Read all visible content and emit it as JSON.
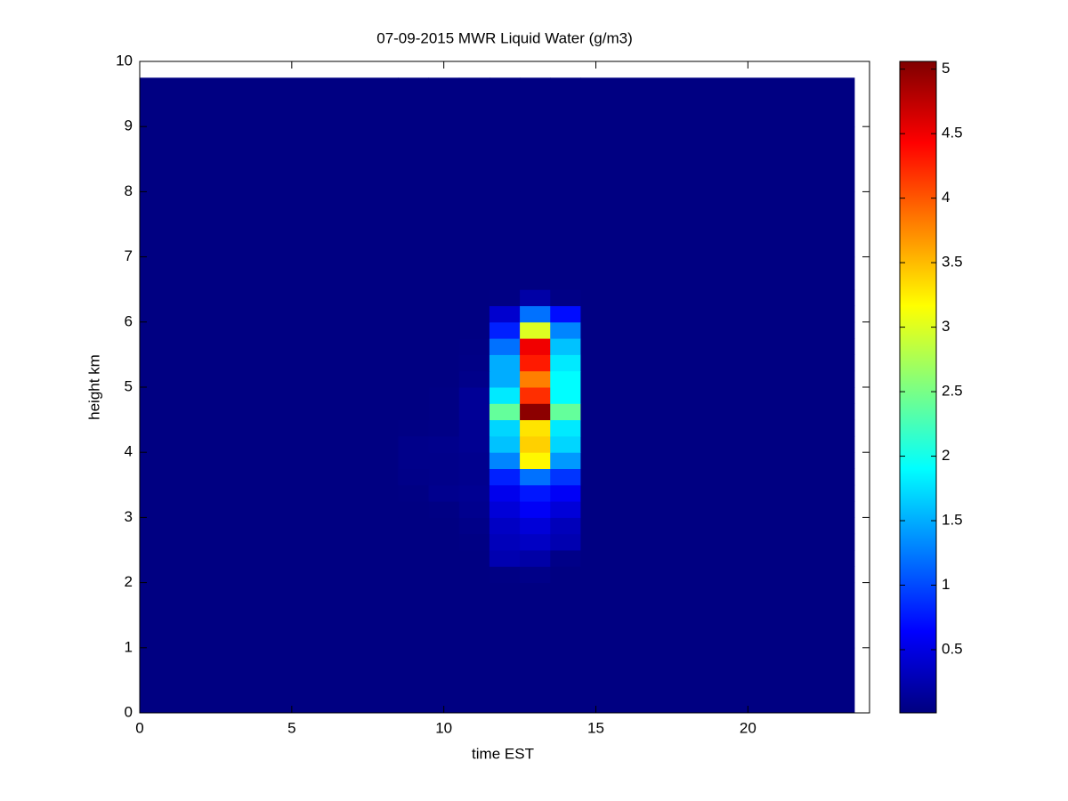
{
  "chart_data": {
    "type": "heatmap",
    "title": "07-09-2015 MWR Liquid Water (g/m3)",
    "x_label": "time EST",
    "y_label": "height km",
    "xlim": [
      0,
      24
    ],
    "ylim": [
      0,
      10
    ],
    "xticks": [
      0,
      5,
      10,
      15,
      20
    ],
    "yticks": [
      0,
      1,
      2,
      3,
      4,
      5,
      6,
      7,
      8,
      9,
      10
    ],
    "x_edges": [
      0,
      8.5,
      9.5,
      10.5,
      11.5,
      12.5,
      13.5,
      14.5,
      23.5
    ],
    "y_edges": [
      0,
      1,
      2,
      2.25,
      2.5,
      2.75,
      3,
      3.25,
      3.5,
      3.75,
      4,
      4.25,
      4.5,
      4.75,
      5,
      5.25,
      5.5,
      5.75,
      6,
      6.25,
      6.5,
      7,
      8,
      9,
      9.75
    ],
    "z": [
      [
        0.02,
        0.02,
        0.02,
        0.02,
        0.02,
        0.02,
        0.02,
        0.02
      ],
      [
        0.02,
        0.02,
        0.02,
        0.02,
        0.02,
        0.02,
        0.02,
        0.02
      ],
      [
        0.02,
        0.02,
        0.02,
        0.02,
        0.03,
        0.05,
        0.02,
        0.02
      ],
      [
        0.02,
        0.02,
        0.02,
        0.02,
        0.25,
        0.2,
        0.05,
        0.02
      ],
      [
        0.02,
        0.02,
        0.02,
        0.03,
        0.3,
        0.35,
        0.25,
        0.02
      ],
      [
        0.02,
        0.02,
        0.02,
        0.05,
        0.35,
        0.45,
        0.3,
        0.02
      ],
      [
        0.02,
        0.02,
        0.03,
        0.08,
        0.45,
        0.6,
        0.45,
        0.02
      ],
      [
        0.02,
        0.03,
        0.08,
        0.1,
        0.55,
        0.75,
        0.6,
        0.02
      ],
      [
        0.02,
        0.05,
        0.06,
        0.08,
        0.8,
        1.2,
        0.9,
        0.02
      ],
      [
        0.02,
        0.06,
        0.06,
        0.08,
        1.3,
        3.2,
        1.4,
        0.02
      ],
      [
        0.02,
        0.06,
        0.07,
        0.1,
        1.6,
        3.4,
        1.7,
        0.02
      ],
      [
        0.02,
        0.03,
        0.04,
        0.1,
        1.7,
        3.3,
        1.8,
        0.02
      ],
      [
        0.02,
        0.02,
        0.03,
        0.12,
        2.4,
        5.0,
        2.4,
        0.02
      ],
      [
        0.02,
        0.02,
        0.03,
        0.12,
        1.8,
        4.2,
        1.9,
        0.02
      ],
      [
        0.02,
        0.02,
        0.02,
        0.06,
        1.5,
        3.8,
        1.9,
        0.02
      ],
      [
        0.02,
        0.02,
        0.02,
        0.04,
        1.5,
        4.3,
        1.8,
        0.02
      ],
      [
        0.02,
        0.02,
        0.02,
        0.03,
        1.2,
        4.5,
        1.6,
        0.02
      ],
      [
        0.02,
        0.02,
        0.02,
        0.02,
        0.8,
        3.0,
        1.3,
        0.02
      ],
      [
        0.02,
        0.02,
        0.02,
        0.02,
        0.4,
        1.2,
        0.7,
        0.02
      ],
      [
        0.02,
        0.02,
        0.02,
        0.02,
        0.03,
        0.2,
        0.04,
        0.02
      ],
      [
        0.02,
        0.02,
        0.02,
        0.02,
        0.02,
        0.02,
        0.02,
        0.02
      ],
      [
        0.02,
        0.02,
        0.02,
        0.02,
        0.02,
        0.02,
        0.02,
        0.02
      ],
      [
        0.02,
        0.02,
        0.02,
        0.02,
        0.02,
        0.02,
        0.02,
        0.02
      ],
      [
        0.02,
        0.02,
        0.02,
        0.02,
        0.02,
        0.02,
        0.02,
        0.02
      ]
    ],
    "colormap": "jet",
    "clim": [
      0.01,
      5.06
    ],
    "colorbar_ticks": [
      0.5,
      1,
      1.5,
      2,
      2.5,
      3,
      3.5,
      4,
      4.5,
      5
    ]
  }
}
